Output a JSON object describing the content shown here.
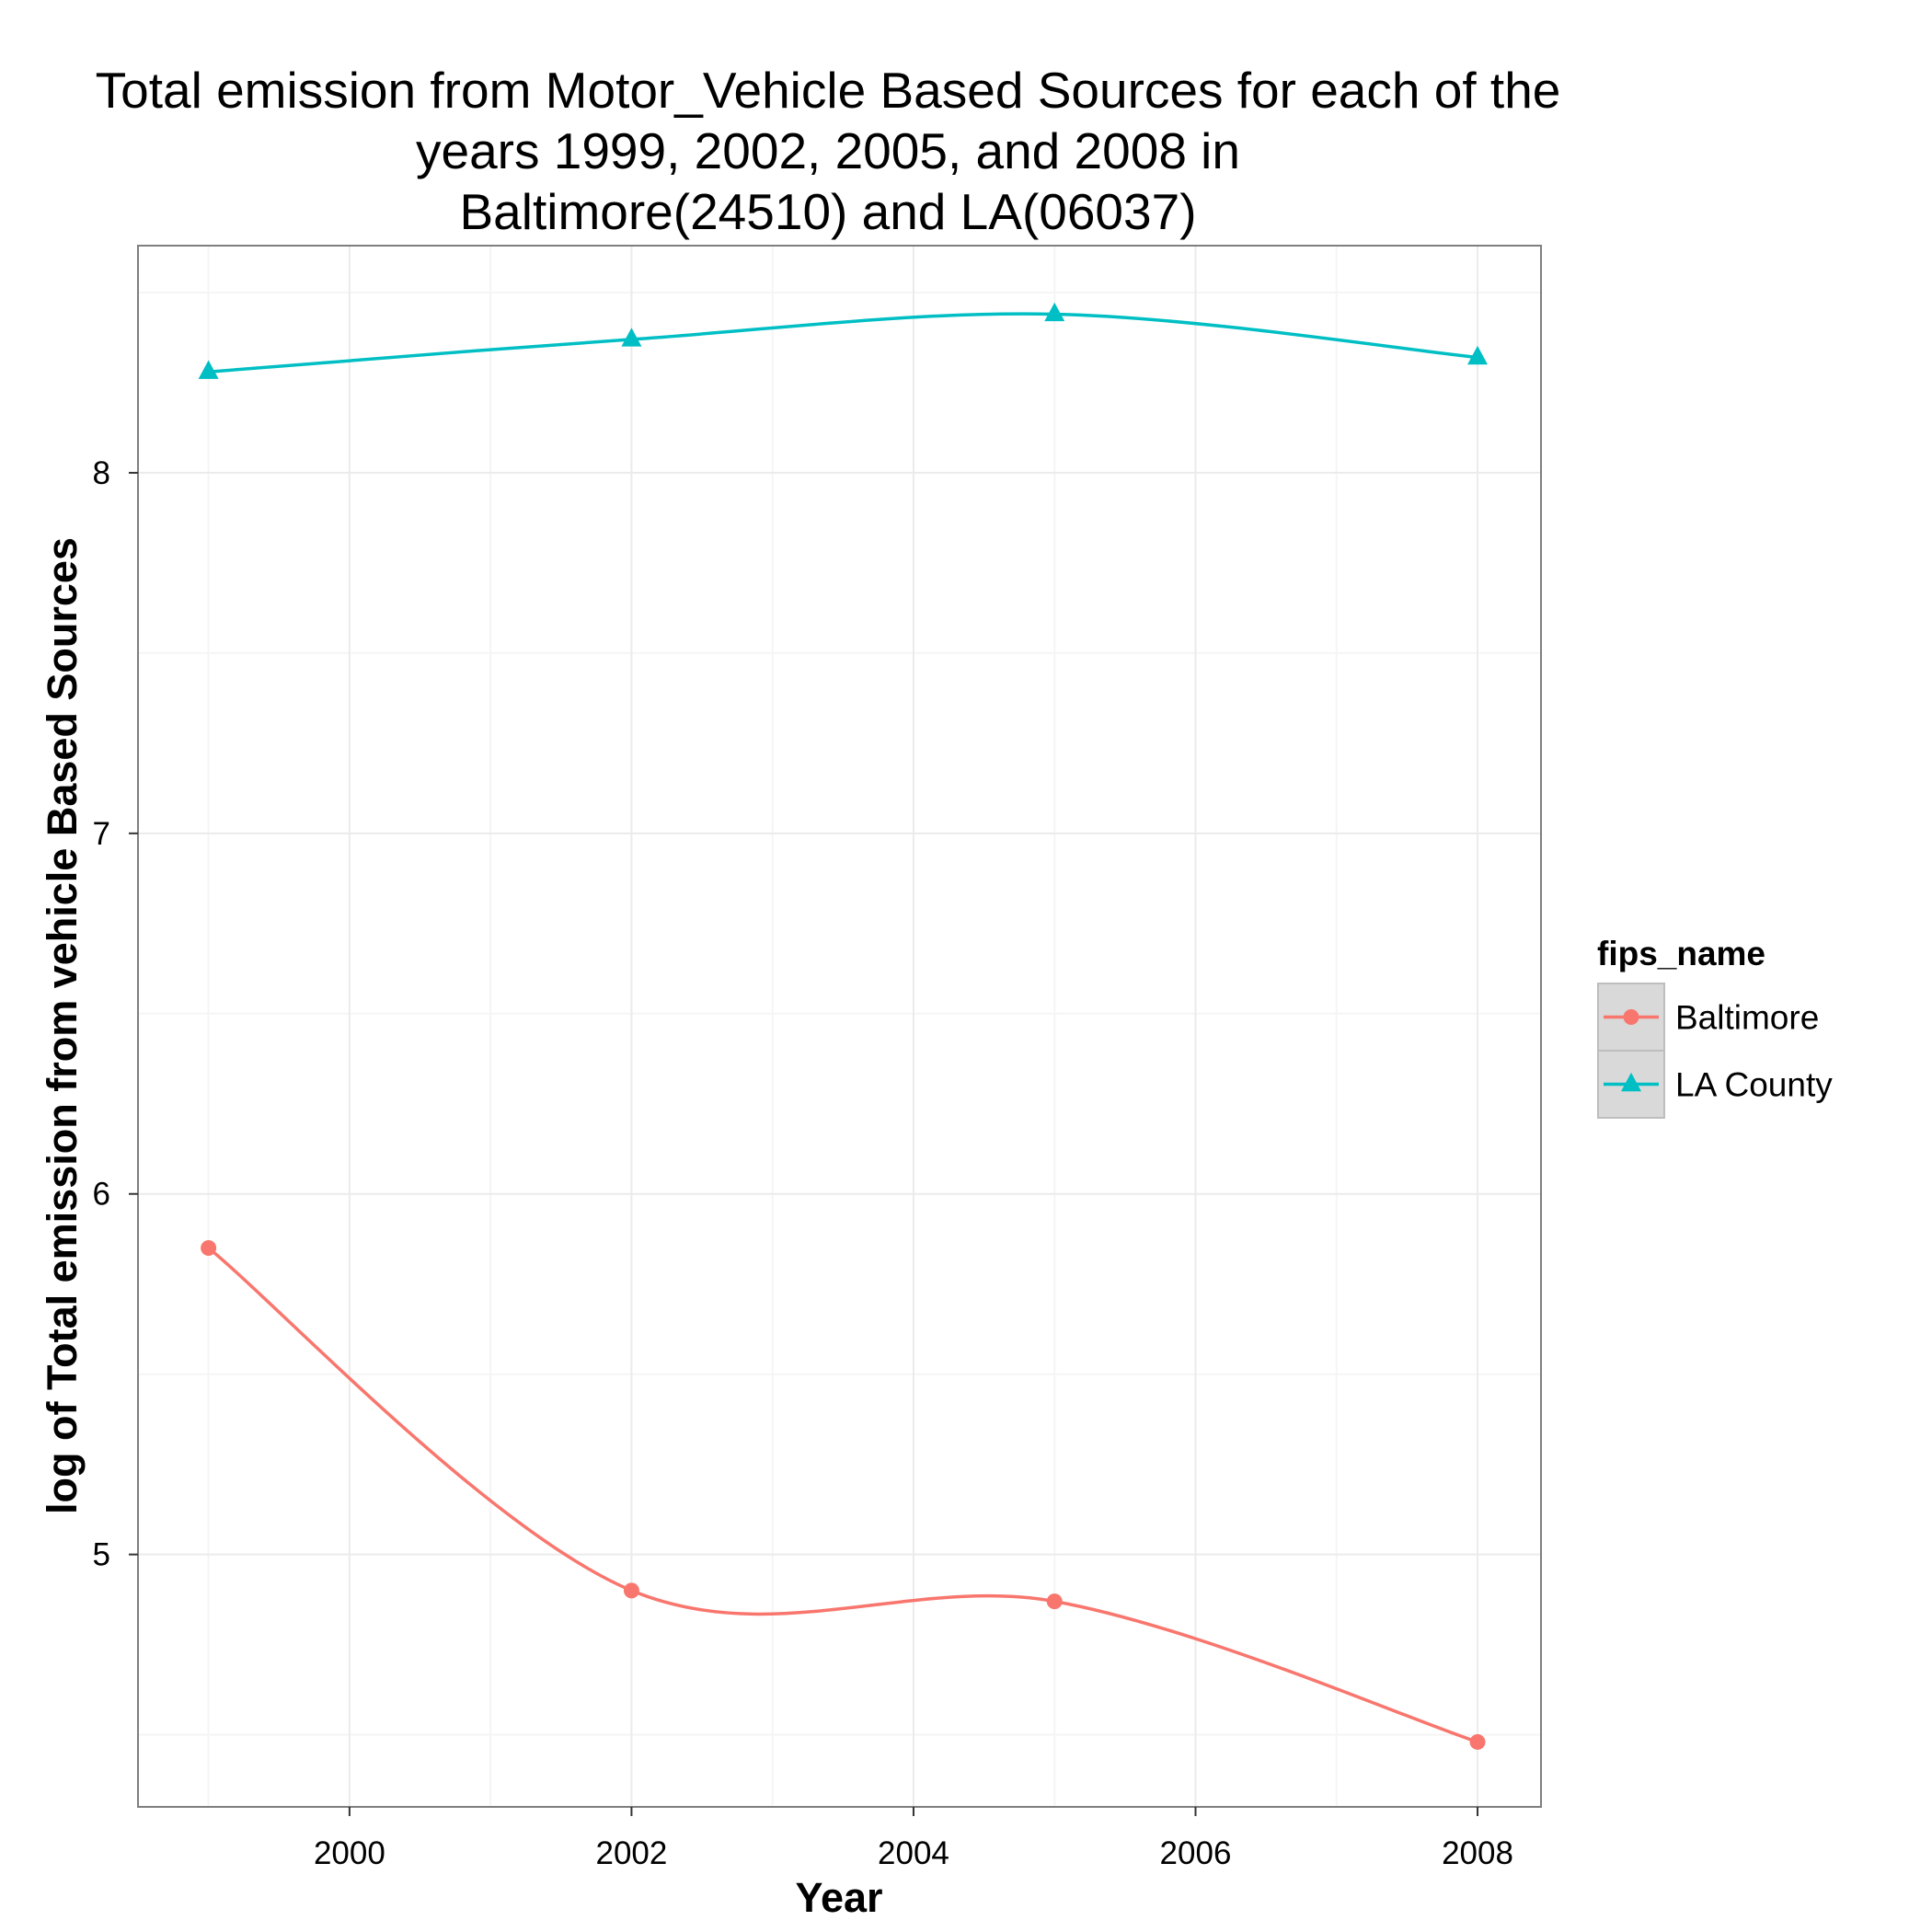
{
  "chart_data": {
    "type": "line",
    "title_lines": [
      "Total emission from Motor_Vehicle Based Sources for each of the",
      "years 1999, 2002, 2005, and 2008 in",
      "Baltimore(24510) and LA(06037)"
    ],
    "xlabel": "Year",
    "ylabel": "log of Total emission from vehicle Based Sources",
    "xlim": [
      1998.5,
      2008.45
    ],
    "ylim": [
      4.3,
      8.63
    ],
    "x_ticks": [
      2000,
      2002,
      2004,
      2006,
      2008
    ],
    "x_tick_labels": [
      "2000",
      "2002",
      "2004",
      "2006",
      "2008"
    ],
    "y_ticks": [
      5,
      6,
      7,
      8
    ],
    "y_tick_labels": [
      "5",
      "6",
      "7",
      "8"
    ],
    "grid": true,
    "legend": {
      "title": "fips_name",
      "position": "right"
    },
    "x": [
      1999,
      2002,
      2005,
      2008
    ],
    "series": [
      {
        "name": "Baltimore",
        "values": [
          5.85,
          4.9,
          4.87,
          4.48
        ],
        "color": "#F8766D",
        "marker": "circle"
      },
      {
        "name": "LA County",
        "values": [
          8.28,
          8.37,
          8.44,
          8.32
        ],
        "color": "#00BFC4",
        "marker": "triangle"
      }
    ],
    "colors": {
      "panel_border": "#7f7f7f",
      "grid_major": "#ebebeb",
      "grid_minor": "#f5f5f5",
      "legend_key_bg": "#d9d9d9",
      "legend_key_border": "#bdbdbd"
    }
  }
}
